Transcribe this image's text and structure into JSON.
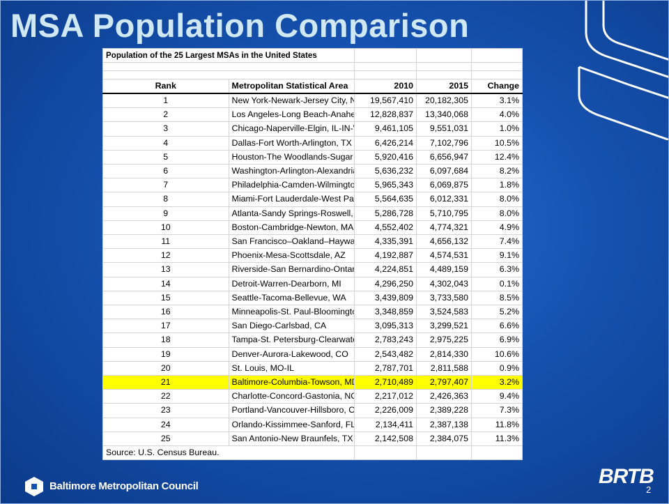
{
  "title": "MSA Population Comparison",
  "table": {
    "caption": "Population of the 25 Largest MSAs in the United States",
    "headers": [
      "Rank",
      "Metropolitan Statistical Area",
      "2010",
      "2015",
      "Change"
    ],
    "rows": [
      [
        "1",
        "New York-Newark-Jersey City, NY-NJ-PA",
        "19,567,410",
        "20,182,305",
        "3.1%"
      ],
      [
        "2",
        "Los Angeles-Long Beach-Anaheim, CA",
        "12,828,837",
        "13,340,068",
        "4.0%"
      ],
      [
        "3",
        "Chicago-Naperville-Elgin, IL-IN-WI",
        "9,461,105",
        "9,551,031",
        "1.0%"
      ],
      [
        "4",
        "Dallas-Fort Worth-Arlington, TX",
        "6,426,214",
        "7,102,796",
        "10.5%"
      ],
      [
        "5",
        "Houston-The Woodlands-Sugar Land, TX",
        "5,920,416",
        "6,656,947",
        "12.4%"
      ],
      [
        "6",
        "Washington-Arlington-Alexandria, DC-VA-MD-WV",
        "5,636,232",
        "6,097,684",
        "8.2%"
      ],
      [
        "7",
        "Philadelphia-Camden-Wilmington, PA-NJ-DE-MD",
        "5,965,343",
        "6,069,875",
        "1.8%"
      ],
      [
        "8",
        "Miami-Fort Lauderdale-West Palm Beach, FL",
        "5,564,635",
        "6,012,331",
        "8.0%"
      ],
      [
        "9",
        "Atlanta-Sandy Springs-Roswell, GA",
        "5,286,728",
        "5,710,795",
        "8.0%"
      ],
      [
        "10",
        "Boston-Cambridge-Newton, MA-NH",
        "4,552,402",
        "4,774,321",
        "4.9%"
      ],
      [
        "11",
        "San Francisco–Oakland–Hayward, CA",
        "4,335,391",
        "4,656,132",
        "7.4%"
      ],
      [
        "12",
        "Phoenix-Mesa-Scottsdale, AZ",
        "4,192,887",
        "4,574,531",
        "9.1%"
      ],
      [
        "13",
        "Riverside-San Bernardino-Ontario, CA",
        "4,224,851",
        "4,489,159",
        "6.3%"
      ],
      [
        "14",
        "Detroit-Warren-Dearborn, MI",
        "4,296,250",
        "4,302,043",
        "0.1%"
      ],
      [
        "15",
        "Seattle-Tacoma-Bellevue, WA",
        "3,439,809",
        "3,733,580",
        "8.5%"
      ],
      [
        "16",
        "Minneapolis-St. Paul-Bloomington, MN-WI",
        "3,348,859",
        "3,524,583",
        "5.2%"
      ],
      [
        "17",
        "San Diego-Carlsbad, CA",
        "3,095,313",
        "3,299,521",
        "6.6%"
      ],
      [
        "18",
        "Tampa-St. Petersburg-Clearwater, FL",
        "2,783,243",
        "2,975,225",
        "6.9%"
      ],
      [
        "19",
        "Denver-Aurora-Lakewood, CO",
        "2,543,482",
        "2,814,330",
        "10.6%"
      ],
      [
        "20",
        "St. Louis, MO-IL",
        "2,787,701",
        "2,811,588",
        "0.9%"
      ],
      [
        "21",
        "Baltimore-Columbia-Towson, MD",
        "2,710,489",
        "2,797,407",
        "3.2%"
      ],
      [
        "22",
        "Charlotte-Concord-Gastonia, NC-SC",
        "2,217,012",
        "2,426,363",
        "9.4%"
      ],
      [
        "23",
        "Portland-Vancouver-Hillsboro, OR-WA",
        "2,226,009",
        "2,389,228",
        "7.3%"
      ],
      [
        "24",
        "Orlando-Kissimmee-Sanford, FL",
        "2,134,411",
        "2,387,138",
        "11.8%"
      ],
      [
        "25",
        "San Antonio-New Braunfels, TX",
        "2,142,508",
        "2,384,075",
        "11.3%"
      ]
    ],
    "source": "Source: U.S. Census Bureau.",
    "highlight": {
      "row": 20,
      "color": "#ffff00"
    }
  },
  "footer": {
    "organization": "Baltimore Metropolitan Council",
    "logo": "BRTB",
    "page": "2"
  }
}
